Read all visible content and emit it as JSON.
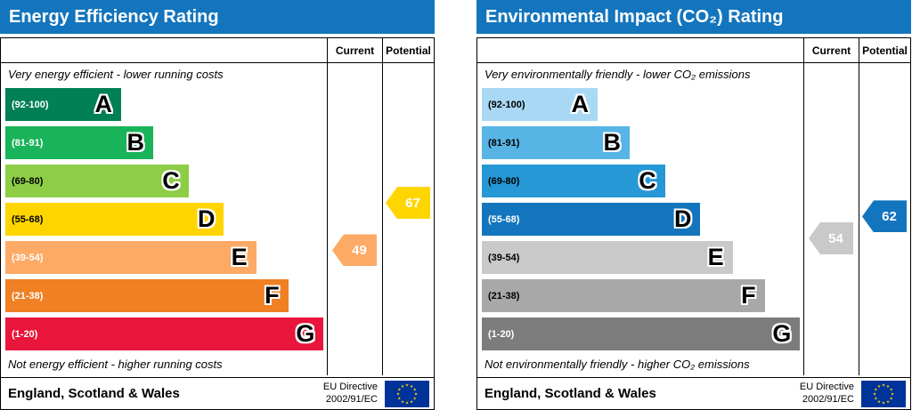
{
  "colors": {
    "header_blue": "#1375BD",
    "border": "#000000",
    "eu_flag_blue": "#003399",
    "eu_flag_stars": "#FFCC00"
  },
  "chart_data": [
    {
      "type": "bar",
      "title": "Energy Efficiency Rating",
      "columns": {
        "current": "Current",
        "potential": "Potential"
      },
      "top_caption": "Very energy efficient - lower running costs",
      "bottom_caption": "Not energy efficient - higher running costs",
      "bands": [
        {
          "range_label": "(92-100)",
          "low": 92,
          "high": 100,
          "letter": "A",
          "color": "#008054",
          "label_color": "#FFFFFF",
          "width_pct": 36
        },
        {
          "range_label": "(81-91)",
          "low": 81,
          "high": 91,
          "letter": "B",
          "color": "#19B459",
          "label_color": "#FFFFFF",
          "width_pct": 46
        },
        {
          "range_label": "(69-80)",
          "low": 69,
          "high": 80,
          "letter": "C",
          "color": "#8DCE46",
          "label_color": "#000000",
          "width_pct": 57
        },
        {
          "range_label": "(55-68)",
          "low": 55,
          "high": 68,
          "letter": "D",
          "color": "#FFD500",
          "label_color": "#000000",
          "width_pct": 68
        },
        {
          "range_label": "(39-54)",
          "low": 39,
          "high": 54,
          "letter": "E",
          "color": "#FCAA65",
          "label_color": "#FFFFFF",
          "width_pct": 78
        },
        {
          "range_label": "(21-38)",
          "low": 21,
          "high": 38,
          "letter": "F",
          "color": "#EF8023",
          "label_color": "#FFFFFF",
          "width_pct": 88
        },
        {
          "range_label": "(1-20)",
          "low": 1,
          "high": 20,
          "letter": "G",
          "color": "#E9153B",
          "label_color": "#FFFFFF",
          "width_pct": 99
        }
      ],
      "current": {
        "value": 49,
        "band_index": 4,
        "band": "E",
        "color": "#FCAA65",
        "text_color": "#FFFFFF"
      },
      "potential": {
        "value": 67,
        "band_index": 3,
        "band": "D",
        "color": "#FFD500",
        "text_color": "#FFFFFF"
      },
      "footer": {
        "region": "England, Scotland & Wales",
        "directive_line1": "EU Directive",
        "directive_line2": "2002/91/EC"
      },
      "scale_range": [
        1,
        100
      ]
    },
    {
      "type": "bar",
      "title": "Environmental Impact (CO₂) Rating",
      "columns": {
        "current": "Current",
        "potential": "Potential"
      },
      "top_caption": "Very environmentally friendly - lower CO₂ emissions",
      "bottom_caption": "Not environmentally friendly - higher CO₂ emissions",
      "bands": [
        {
          "range_label": "(92-100)",
          "low": 92,
          "high": 100,
          "letter": "A",
          "color": "#A9D8F4",
          "label_color": "#000000",
          "width_pct": 36
        },
        {
          "range_label": "(81-91)",
          "low": 81,
          "high": 91,
          "letter": "B",
          "color": "#57B4E5",
          "label_color": "#000000",
          "width_pct": 46
        },
        {
          "range_label": "(69-80)",
          "low": 69,
          "high": 80,
          "letter": "C",
          "color": "#2598D5",
          "label_color": "#000000",
          "width_pct": 57
        },
        {
          "range_label": "(55-68)",
          "low": 55,
          "high": 68,
          "letter": "D",
          "color": "#1375BD",
          "label_color": "#FFFFFF",
          "width_pct": 68
        },
        {
          "range_label": "(39-54)",
          "low": 39,
          "high": 54,
          "letter": "E",
          "color": "#C9C9C9",
          "label_color": "#000000",
          "width_pct": 78
        },
        {
          "range_label": "(21-38)",
          "low": 21,
          "high": 38,
          "letter": "F",
          "color": "#A8A8A8",
          "label_color": "#000000",
          "width_pct": 88
        },
        {
          "range_label": "(1-20)",
          "low": 1,
          "high": 20,
          "letter": "G",
          "color": "#7C7C7C",
          "label_color": "#FFFFFF",
          "width_pct": 99
        }
      ],
      "current": {
        "value": 54,
        "band_index": 4,
        "band": "E",
        "color": "#C9C9C9",
        "text_color": "#FFFFFF"
      },
      "potential": {
        "value": 62,
        "band_index": 3,
        "band": "D",
        "color": "#1375BD",
        "text_color": "#FFFFFF"
      },
      "footer": {
        "region": "England, Scotland & Wales",
        "directive_line1": "EU Directive",
        "directive_line2": "2002/91/EC"
      },
      "scale_range": [
        1,
        100
      ]
    }
  ]
}
